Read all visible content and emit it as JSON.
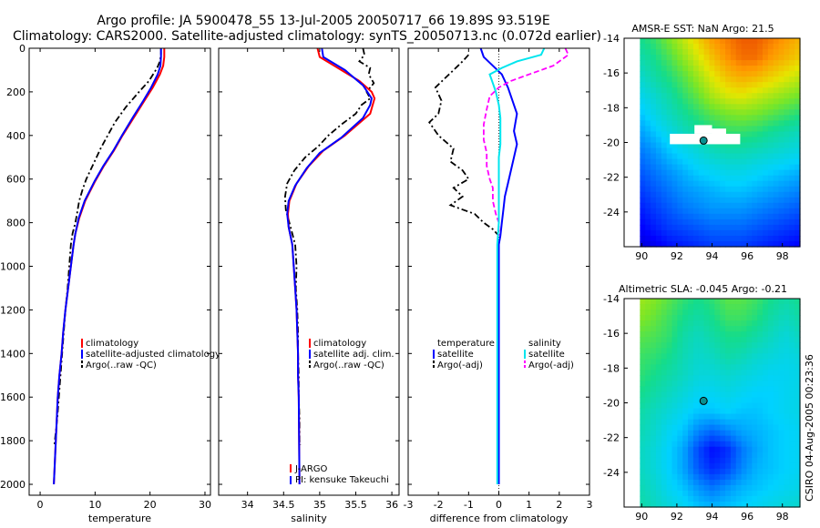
{
  "title": {
    "line1": "Argo profile: JA 5900478_55 13-Jul-2005 20050717_66 19.89S 93.519E",
    "line2": "Climatology: CARS2000. Satellite-adjusted climatology: synTS_20050713.nc (0.072d earlier)"
  },
  "credit": "CSIRO 04-Aug-2005 00:23:36",
  "colors": {
    "climatology": "#ff0000",
    "satellite": "#0000ff",
    "argo": "#000000",
    "salinity_sat": "#00e5ee",
    "salinity_argo": "#ff00ff",
    "marker": "#0a9090"
  },
  "chart_data": [
    {
      "id": "temperature",
      "type": "line",
      "xlabel": "temperature",
      "xlim": [
        -2,
        31
      ],
      "ylim": [
        2050,
        0
      ],
      "y_reversed": true,
      "xticks": [
        0,
        10,
        20,
        30
      ],
      "yticks": [
        0,
        200,
        400,
        600,
        800,
        1000,
        1200,
        1400,
        1600,
        1800,
        2000
      ],
      "ytick_labels": [
        "0",
        "200",
        "400",
        "600",
        "800",
        "1000",
        "1200",
        "1400",
        "1600",
        "1800",
        "2000"
      ],
      "legend": [
        "climatology",
        "satellite-adjusted climatology",
        "Argo(..raw -QC)"
      ],
      "series": [
        {
          "name": "Argo(..raw -QC)",
          "style": "dashdot",
          "color": "argo",
          "x": [
            22.0,
            22.0,
            21.8,
            21.3,
            19.8,
            18.0,
            15.6,
            13.6,
            12.3,
            11.0,
            9.7,
            8.4,
            7.7,
            7.1,
            6.7,
            6.4,
            5.9,
            5.6,
            5.3,
            5.0,
            4.6,
            4.3,
            4.0,
            3.7,
            3.4,
            3.1,
            2.6
          ],
          "y": [
            0,
            30,
            60,
            90,
            150,
            200,
            270,
            340,
            400,
            460,
            530,
            600,
            650,
            700,
            760,
            800,
            850,
            900,
            1000,
            1100,
            1200,
            1300,
            1400,
            1500,
            1600,
            1700,
            1820
          ]
        },
        {
          "name": "climatology",
          "style": "solid",
          "color": "climatology",
          "x": [
            22.6,
            22.6,
            22.4,
            21.8,
            20.5,
            19.0,
            17.0,
            15.0,
            13.4,
            11.6,
            10.0,
            8.2,
            7.1,
            6.4,
            6.1,
            5.6,
            5.1,
            4.6,
            4.2,
            3.9,
            3.5,
            3.2,
            2.5
          ],
          "y": [
            0,
            40,
            80,
            120,
            180,
            240,
            320,
            400,
            470,
            540,
            610,
            700,
            780,
            850,
            900,
            1000,
            1100,
            1200,
            1300,
            1400,
            1500,
            1600,
            2000
          ]
        },
        {
          "name": "satellite-adjusted climatology",
          "style": "solid",
          "color": "satellite",
          "x": [
            22.0,
            22.0,
            21.9,
            21.4,
            20.2,
            18.8,
            16.8,
            14.9,
            13.3,
            11.5,
            9.9,
            8.1,
            7.0,
            6.4,
            6.1,
            5.6,
            5.1,
            4.6,
            4.2,
            3.9,
            3.5,
            3.2,
            2.5
          ],
          "y": [
            0,
            40,
            80,
            120,
            180,
            240,
            320,
            400,
            470,
            540,
            610,
            700,
            780,
            850,
            900,
            1000,
            1100,
            1200,
            1300,
            1400,
            1500,
            1600,
            2000
          ]
        }
      ]
    },
    {
      "id": "salinity",
      "type": "line",
      "xlabel": "salinity",
      "xlim": [
        33.6,
        36.1
      ],
      "ylim": [
        2050,
        0
      ],
      "y_reversed": true,
      "xticks": [
        34,
        34.5,
        35,
        35.5,
        36
      ],
      "yticks": [
        0,
        200,
        400,
        600,
        800,
        1000,
        1200,
        1400,
        1600,
        1800,
        2000
      ],
      "legend": [
        "climatology",
        "satellite adj. clim.",
        "Argo(..raw -QC)"
      ],
      "annotations": [
        "J-ARGO",
        "PI: kensuke Takeuchi"
      ],
      "series": [
        {
          "name": "Argo(..raw -QC)",
          "style": "dashdot",
          "color": "argo",
          "x": [
            35.6,
            35.62,
            35.55,
            35.7,
            35.68,
            35.75,
            35.65,
            35.7,
            35.58,
            35.5,
            35.3,
            35.12,
            34.98,
            34.8,
            34.65,
            34.55,
            34.52,
            34.53,
            34.58,
            34.62,
            34.66,
            34.68,
            34.67,
            34.69,
            34.7,
            34.7,
            34.71,
            34.71,
            34.72,
            34.72,
            34.73
          ],
          "y": [
            0,
            30,
            60,
            90,
            120,
            160,
            200,
            230,
            260,
            300,
            350,
            400,
            450,
            500,
            560,
            620,
            680,
            740,
            800,
            850,
            900,
            1000,
            1100,
            1200,
            1300,
            1400,
            1500,
            1600,
            1700,
            1800,
            1820
          ]
        },
        {
          "name": "climatology",
          "style": "solid",
          "color": "climatology",
          "x": [
            34.97,
            35.0,
            35.2,
            35.55,
            35.72,
            35.76,
            35.7,
            35.35,
            35.05,
            34.85,
            34.68,
            34.58,
            34.56,
            34.57,
            34.62,
            34.64,
            34.66,
            34.68,
            34.69,
            34.7,
            34.7,
            34.71,
            34.72
          ],
          "y": [
            0,
            40,
            80,
            150,
            200,
            230,
            300,
            400,
            470,
            540,
            620,
            700,
            760,
            820,
            900,
            1000,
            1100,
            1200,
            1300,
            1400,
            1500,
            1600,
            2000
          ]
        },
        {
          "name": "satellite adj. clim.",
          "style": "solid",
          "color": "satellite",
          "x": [
            35.03,
            35.05,
            35.35,
            35.6,
            35.72,
            35.7,
            35.6,
            35.3,
            35.0,
            34.82,
            34.66,
            34.57,
            34.55,
            34.57,
            34.62,
            34.64,
            34.66,
            34.68,
            34.69,
            34.7,
            34.7,
            34.71,
            34.72
          ],
          "y": [
            0,
            40,
            100,
            170,
            230,
            260,
            320,
            410,
            480,
            550,
            630,
            700,
            760,
            820,
            900,
            1000,
            1100,
            1200,
            1300,
            1400,
            1500,
            1600,
            2000
          ]
        }
      ]
    },
    {
      "id": "difference",
      "type": "line",
      "xlabel": "difference from climatology",
      "xlim": [
        -3,
        3
      ],
      "ylim": [
        2050,
        0
      ],
      "y_reversed": true,
      "xticks": [
        -3,
        -2,
        -1,
        0,
        1,
        2,
        3
      ],
      "yticks": [
        0,
        200,
        400,
        600,
        800,
        1000,
        1200,
        1400,
        1600,
        1800,
        2000
      ],
      "legend_left": [
        "temperature",
        "satellite",
        "Argo(-adj)"
      ],
      "legend_right": [
        "salinity",
        "satellite",
        "Argo(-adj)"
      ],
      "series": [
        {
          "name": "temperature Argo(-adj)",
          "style": "dashdot",
          "color": "argo",
          "x": [
            -1.0,
            -1.2,
            -1.5,
            -1.8,
            -2.1,
            -1.9,
            -2.0,
            -2.3,
            -2.0,
            -1.5,
            -1.6,
            -1.2,
            -1.0,
            -1.5,
            -1.2,
            -1.6,
            -0.8,
            -0.5,
            -0.2,
            0.0
          ],
          "y": [
            30,
            60,
            100,
            140,
            180,
            240,
            300,
            340,
            400,
            460,
            520,
            560,
            600,
            640,
            680,
            720,
            760,
            800,
            830,
            860
          ]
        },
        {
          "name": "temperature satellite",
          "style": "solid",
          "color": "satellite",
          "x": [
            -0.6,
            -0.5,
            -0.2,
            0.1,
            0.3,
            0.4,
            0.6,
            0.5,
            0.6,
            0.5,
            0.4,
            0.3,
            0.2,
            0.15,
            0.1,
            0.05,
            0.0,
            0.0,
            0.0,
            0.0,
            0.0,
            0.0
          ],
          "y": [
            0,
            40,
            80,
            120,
            180,
            220,
            300,
            380,
            440,
            500,
            560,
            620,
            680,
            740,
            800,
            860,
            900,
            1000,
            1200,
            1400,
            1600,
            2000
          ]
        },
        {
          "name": "salinity Argo(-adj)",
          "style": "dashed",
          "color": "salinity_argo",
          "x": [
            2.2,
            2.3,
            1.8,
            1.0,
            0.4,
            0.0,
            -0.3,
            -0.4,
            -0.5,
            -0.5,
            -0.4,
            -0.4,
            -0.3,
            -0.2,
            -0.2,
            -0.1,
            0.0,
            0.0,
            0.0
          ],
          "y": [
            0,
            30,
            80,
            120,
            150,
            180,
            220,
            280,
            350,
            420,
            480,
            540,
            600,
            640,
            700,
            760,
            800,
            820,
            860
          ]
        },
        {
          "name": "salinity satellite",
          "style": "solid",
          "color": "salinity_sat",
          "x": [
            1.5,
            1.4,
            0.6,
            0.1,
            -0.3,
            -0.2,
            -0.1,
            0.0,
            0.05,
            0.05,
            0.05,
            0.0,
            0.0,
            0.0,
            0.0,
            -0.05,
            -0.05,
            -0.05,
            -0.05,
            -0.05,
            -0.05,
            -0.05,
            -0.05
          ],
          "y": [
            0,
            30,
            60,
            90,
            120,
            160,
            200,
            260,
            320,
            380,
            440,
            500,
            600,
            700,
            800,
            900,
            1000,
            1100,
            1200,
            1400,
            1600,
            1800,
            2000
          ]
        }
      ]
    },
    {
      "id": "sst_map",
      "type": "heatmap",
      "title": "AMSR-E SST: NaN Argo: 21.5",
      "xlim": [
        89,
        99
      ],
      "ylim": [
        -26,
        -14
      ],
      "xticks": [
        90,
        92,
        94,
        96,
        98
      ],
      "yticks": [
        -14,
        -16,
        -18,
        -20,
        -22,
        -24
      ],
      "valid_lon_range": [
        89.9,
        99
      ],
      "range": [
        16,
        28
      ],
      "field": [
        [
          22.0,
          22.5,
          23.5,
          24.5,
          25.5,
          26.5,
          27.0,
          27.5,
          27.5,
          27.0,
          26.5,
          26.0
        ],
        [
          21.5,
          22.0,
          22.8,
          23.8,
          24.8,
          25.8,
          26.6,
          27.2,
          27.2,
          26.5,
          26.0,
          25.5
        ],
        [
          21.0,
          21.6,
          22.2,
          23.0,
          24.0,
          25.0,
          25.8,
          26.2,
          26.0,
          25.5,
          25.0,
          24.5
        ],
        [
          20.5,
          21.0,
          21.6,
          22.4,
          23.2,
          24.2,
          24.8,
          25.0,
          24.6,
          24.2,
          23.8,
          23.4
        ],
        [
          20.0,
          20.6,
          21.2,
          21.8,
          22.4,
          23.0,
          23.4,
          23.6,
          23.4,
          23.0,
          22.6,
          22.2
        ],
        [
          19.5,
          20.0,
          20.6,
          21.2,
          21.6,
          22.0,
          22.4,
          22.4,
          22.2,
          21.8,
          21.5,
          21.2
        ],
        [
          19.0,
          19.4,
          20.0,
          20.4,
          20.8,
          21.2,
          21.4,
          21.4,
          21.2,
          21.0,
          20.8,
          20.6
        ],
        [
          18.6,
          19.0,
          19.4,
          19.8,
          20.2,
          20.4,
          20.6,
          20.6,
          20.4,
          20.2,
          20.0,
          19.8
        ],
        [
          18.2,
          18.6,
          19.0,
          19.4,
          19.6,
          19.8,
          20.0,
          20.0,
          19.8,
          19.6,
          19.4,
          19.2
        ],
        [
          17.8,
          18.2,
          18.6,
          19.0,
          19.2,
          19.4,
          19.4,
          19.4,
          19.2,
          19.0,
          18.8,
          18.6
        ],
        [
          17.4,
          17.8,
          18.2,
          18.4,
          18.6,
          18.8,
          18.8,
          18.8,
          18.6,
          18.4,
          18.2,
          18.0
        ],
        [
          17.0,
          17.2,
          17.6,
          17.8,
          18.0,
          18.2,
          18.2,
          18.2,
          18.0,
          17.8,
          17.6,
          17.4
        ]
      ],
      "marker": {
        "lon": 93.519,
        "lat": -19.89
      },
      "missing_pixels": [
        [
          91.6,
          -19.5,
          4.0,
          0.6
        ],
        [
          93.0,
          -19.0,
          1.0,
          0.5
        ],
        [
          94.0,
          -19.2,
          0.8,
          0.4
        ]
      ]
    },
    {
      "id": "sla_map",
      "type": "heatmap",
      "title": "Altimetric SLA: -0.045 Argo: -0.21",
      "xlim": [
        89,
        99
      ],
      "ylim": [
        -26,
        -14
      ],
      "xticks": [
        90,
        92,
        94,
        96,
        98
      ],
      "yticks": [
        -14,
        -16,
        -18,
        -20,
        -22,
        -24
      ],
      "valid_lon_range": [
        89.9,
        99
      ],
      "range": [
        -0.3,
        0.3
      ],
      "field": [
        [
          0.1,
          0.08,
          0.05,
          0.02,
          0.0,
          0.02,
          0.05,
          0.05,
          0.03,
          0.0,
          -0.02,
          0.0
        ],
        [
          0.08,
          0.06,
          0.03,
          0.0,
          -0.02,
          0.0,
          0.03,
          0.03,
          0.01,
          -0.02,
          -0.04,
          -0.02
        ],
        [
          0.05,
          0.04,
          0.02,
          -0.02,
          -0.04,
          -0.02,
          0.0,
          0.0,
          -0.02,
          -0.04,
          -0.06,
          -0.04
        ],
        [
          0.03,
          0.02,
          0.0,
          -0.03,
          -0.05,
          -0.04,
          -0.02,
          -0.03,
          -0.05,
          -0.06,
          -0.07,
          -0.06
        ],
        [
          0.02,
          0.0,
          -0.02,
          -0.04,
          -0.06,
          -0.06,
          -0.05,
          -0.06,
          -0.07,
          -0.08,
          -0.08,
          -0.07
        ],
        [
          0.0,
          -0.02,
          -0.04,
          -0.06,
          -0.08,
          -0.08,
          -0.07,
          -0.08,
          -0.09,
          -0.09,
          -0.08,
          -0.07
        ],
        [
          -0.02,
          -0.04,
          -0.06,
          -0.08,
          -0.1,
          -0.1,
          -0.09,
          -0.1,
          -0.1,
          -0.09,
          -0.08,
          -0.07
        ],
        [
          -0.03,
          -0.05,
          -0.08,
          -0.1,
          -0.14,
          -0.16,
          -0.14,
          -0.12,
          -0.11,
          -0.1,
          -0.09,
          -0.08
        ],
        [
          -0.04,
          -0.06,
          -0.09,
          -0.12,
          -0.18,
          -0.22,
          -0.2,
          -0.15,
          -0.12,
          -0.1,
          -0.09,
          -0.08
        ],
        [
          -0.04,
          -0.06,
          -0.09,
          -0.12,
          -0.17,
          -0.2,
          -0.18,
          -0.14,
          -0.11,
          -0.1,
          -0.09,
          -0.08
        ],
        [
          -0.03,
          -0.05,
          -0.08,
          -0.1,
          -0.13,
          -0.15,
          -0.13,
          -0.11,
          -0.1,
          -0.09,
          -0.08,
          -0.07
        ],
        [
          -0.02,
          -0.04,
          -0.06,
          -0.08,
          -0.1,
          -0.11,
          -0.1,
          -0.09,
          -0.08,
          -0.07,
          -0.06,
          -0.05
        ]
      ],
      "marker": {
        "lon": 93.519,
        "lat": -19.89
      }
    }
  ]
}
